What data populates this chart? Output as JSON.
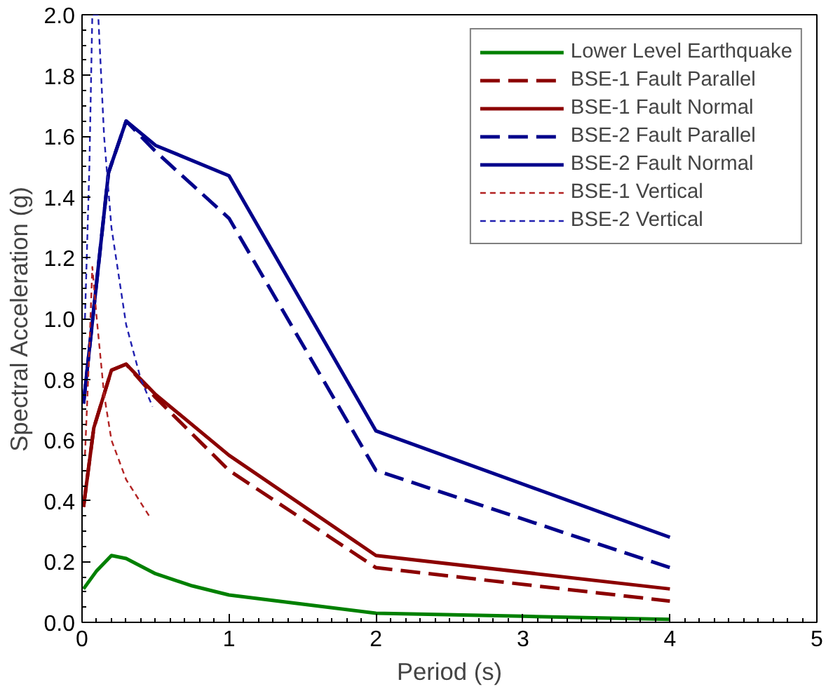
{
  "chart_data": {
    "type": "line",
    "xlabel": "Period (s)",
    "ylabel": "Spectral Acceleration (g)",
    "xlim": [
      0,
      5
    ],
    "ylim": [
      0,
      2.0
    ],
    "xticks": [
      0,
      1,
      2,
      3,
      4,
      5
    ],
    "yticks": [
      {
        "value": 0,
        "label": "0.0"
      },
      {
        "value": 0.2,
        "label": "0.2"
      },
      {
        "value": 0.4,
        "label": "0.4"
      },
      {
        "value": 0.6,
        "label": "0.6"
      },
      {
        "value": 0.8,
        "label": "0.8"
      },
      {
        "value": 1.0,
        "label": "1.0"
      },
      {
        "value": 1.2,
        "label": "1.2"
      },
      {
        "value": 1.4,
        "label": "1.4"
      },
      {
        "value": 1.6,
        "label": "1.6"
      },
      {
        "value": 1.8,
        "label": "1.8"
      },
      {
        "value": 2.0,
        "label": "2.0"
      }
    ],
    "grid": false,
    "legend": "top right",
    "marker": "none",
    "series": [
      {
        "name": "Lower Level Earthquake",
        "color": "#008000",
        "line_style": "solid",
        "x": [
          0.01,
          0.1,
          0.2,
          0.3,
          0.5,
          0.75,
          1.0,
          1.5,
          2,
          3,
          4
        ],
        "values": [
          0.11,
          0.17,
          0.22,
          0.21,
          0.16,
          0.12,
          0.09,
          0.06,
          0.03,
          0.02,
          0.01
        ]
      },
      {
        "name": "BSE-1 Fault Parallel",
        "color": "#8b0000",
        "line_style": "dashed",
        "x": [
          0.01,
          0.08,
          0.2,
          0.3,
          0.5,
          1.0,
          2,
          4
        ],
        "values": [
          0.38,
          0.64,
          0.83,
          0.85,
          0.74,
          0.5,
          0.18,
          0.07
        ]
      },
      {
        "name": "BSE-1 Fault Normal",
        "color": "#8b0000",
        "line_style": "solid",
        "x": [
          0.01,
          0.08,
          0.2,
          0.3,
          0.5,
          1.0,
          2,
          4
        ],
        "values": [
          0.38,
          0.64,
          0.83,
          0.85,
          0.75,
          0.55,
          0.22,
          0.11
        ]
      },
      {
        "name": "BSE-2 Fault Parallel",
        "color": "#00008b",
        "line_style": "dashed",
        "x": [
          0.01,
          0.18,
          0.3,
          0.5,
          1.0,
          2,
          4
        ],
        "values": [
          0.72,
          1.48,
          1.65,
          1.55,
          1.33,
          0.5,
          0.18
        ]
      },
      {
        "name": "BSE-2 Fault Normal",
        "color": "#00008b",
        "line_style": "solid",
        "x": [
          0.01,
          0.18,
          0.3,
          0.5,
          1.0,
          2,
          4
        ],
        "values": [
          0.72,
          1.48,
          1.65,
          1.57,
          1.47,
          0.63,
          0.28
        ]
      },
      {
        "name": "BSE-1 Vertical",
        "color": "#b22222",
        "line_style": "dotted",
        "x": [
          0.02,
          0.05,
          0.07,
          0.1,
          0.15,
          0.2,
          0.3,
          0.47
        ],
        "values": [
          0.55,
          0.9,
          1.17,
          1.0,
          0.75,
          0.6,
          0.47,
          0.34
        ]
      },
      {
        "name": "BSE-2 Vertical",
        "color": "#2020b0",
        "line_style": "dotted",
        "x": [
          0.02,
          0.05,
          0.07,
          0.11,
          0.15,
          0.2,
          0.3,
          0.4,
          0.48
        ],
        "values": [
          1.0,
          1.5,
          2.0,
          2.0,
          1.6,
          1.3,
          0.98,
          0.8,
          0.71
        ]
      }
    ]
  }
}
